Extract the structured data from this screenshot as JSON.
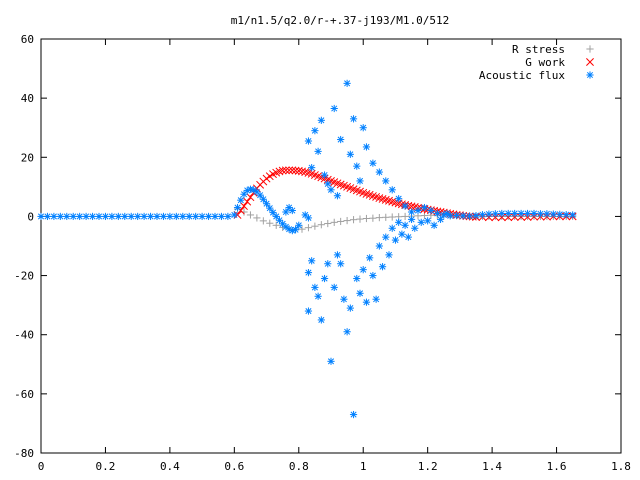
{
  "chart_data": {
    "type": "scatter",
    "title": "m1/n1.5/q2.0/r-+.37-j193/M1.0/512",
    "xlabel": "",
    "ylabel": "",
    "xlim": [
      0,
      1.8
    ],
    "ylim": [
      -80,
      60
    ],
    "xticks": [
      0,
      0.2,
      0.4,
      0.6,
      0.8,
      1,
      1.2,
      1.4,
      1.6,
      1.8
    ],
    "yticks": [
      -80,
      -60,
      -40,
      -20,
      0,
      20,
      40,
      60
    ],
    "xtick_labels": [
      "0",
      "0.2",
      "0.4",
      "0.6",
      "0.8",
      "1",
      "1.2",
      "1.4",
      "1.6",
      "1.8"
    ],
    "ytick_labels": [
      "-80",
      "-60",
      "-40",
      "-20",
      "0",
      "20",
      "40",
      "60"
    ],
    "grid": false,
    "legend_position": "top-right",
    "series": [
      {
        "name": "R stress",
        "marker": "plus",
        "color": "#a0a0a0",
        "points": [
          [
            0.61,
            2.5
          ],
          [
            0.63,
            1.5
          ],
          [
            0.65,
            0.5
          ],
          [
            0.67,
            -0.5
          ],
          [
            0.69,
            -1.5
          ],
          [
            0.71,
            -2.3
          ],
          [
            0.73,
            -3.0
          ],
          [
            0.75,
            -3.7
          ],
          [
            0.77,
            -4.2
          ],
          [
            0.79,
            -4.5
          ],
          [
            0.81,
            -4.3
          ],
          [
            0.83,
            -3.8
          ],
          [
            0.85,
            -3.3
          ],
          [
            0.87,
            -2.8
          ],
          [
            0.89,
            -2.4
          ],
          [
            0.91,
            -2.0
          ],
          [
            0.93,
            -1.7
          ],
          [
            0.95,
            -1.4
          ],
          [
            0.97,
            -1.1
          ],
          [
            0.99,
            -0.9
          ],
          [
            1.01,
            -0.7
          ],
          [
            1.03,
            -0.6
          ],
          [
            1.05,
            -0.4
          ],
          [
            1.07,
            -0.3
          ],
          [
            1.09,
            -0.2
          ],
          [
            1.11,
            -0.1
          ],
          [
            1.13,
            0.0
          ],
          [
            1.15,
            0.1
          ],
          [
            1.17,
            0.2
          ],
          [
            1.19,
            0.3
          ],
          [
            1.21,
            0.4
          ],
          [
            1.23,
            0.4
          ],
          [
            1.25,
            0.5
          ],
          [
            1.27,
            0.4
          ],
          [
            1.29,
            0.3
          ],
          [
            1.31,
            0.2
          ],
          [
            1.33,
            0.1
          ],
          [
            1.35,
            0.1
          ],
          [
            1.37,
            0.0
          ],
          [
            1.39,
            0.0
          ],
          [
            1.41,
            0.0
          ],
          [
            1.43,
            0.0
          ],
          [
            1.45,
            0.0
          ],
          [
            1.47,
            0.0
          ],
          [
            1.49,
            0.0
          ],
          [
            1.51,
            0.0
          ],
          [
            1.53,
            0.0
          ],
          [
            1.55,
            0.0
          ],
          [
            1.57,
            0.0
          ],
          [
            1.59,
            0.0
          ],
          [
            1.61,
            0.0
          ],
          [
            1.63,
            0.0
          ],
          [
            1.65,
            0.0
          ]
        ]
      },
      {
        "name": "G work",
        "marker": "cross",
        "color": "#ff0000",
        "points": [
          [
            0.61,
            0.5
          ],
          [
            0.62,
            2.0
          ],
          [
            0.63,
            3.5
          ],
          [
            0.64,
            5.0
          ],
          [
            0.65,
            6.5
          ],
          [
            0.66,
            8.0
          ],
          [
            0.67,
            9.5
          ],
          [
            0.68,
            10.7
          ],
          [
            0.69,
            11.8
          ],
          [
            0.7,
            12.8
          ],
          [
            0.71,
            13.6
          ],
          [
            0.72,
            14.3
          ],
          [
            0.73,
            14.8
          ],
          [
            0.74,
            15.2
          ],
          [
            0.75,
            15.5
          ],
          [
            0.76,
            15.6
          ],
          [
            0.77,
            15.6
          ],
          [
            0.78,
            15.6
          ],
          [
            0.79,
            15.5
          ],
          [
            0.8,
            15.4
          ],
          [
            0.81,
            15.2
          ],
          [
            0.82,
            15.0
          ],
          [
            0.83,
            14.7
          ],
          [
            0.84,
            14.4
          ],
          [
            0.85,
            14.0
          ],
          [
            0.86,
            13.6
          ],
          [
            0.87,
            13.2
          ],
          [
            0.88,
            12.8
          ],
          [
            0.89,
            12.4
          ],
          [
            0.9,
            12.0
          ],
          [
            0.91,
            11.6
          ],
          [
            0.92,
            11.2
          ],
          [
            0.93,
            10.8
          ],
          [
            0.94,
            10.4
          ],
          [
            0.95,
            10.0
          ],
          [
            0.96,
            9.6
          ],
          [
            0.97,
            9.2
          ],
          [
            0.98,
            8.8
          ],
          [
            0.99,
            8.4
          ],
          [
            1.0,
            8.0
          ],
          [
            1.01,
            7.6
          ],
          [
            1.02,
            7.3
          ],
          [
            1.03,
            6.9
          ],
          [
            1.04,
            6.6
          ],
          [
            1.05,
            6.2
          ],
          [
            1.06,
            5.9
          ],
          [
            1.07,
            5.6
          ],
          [
            1.08,
            5.3
          ],
          [
            1.09,
            5.0
          ],
          [
            1.1,
            4.7
          ],
          [
            1.11,
            4.4
          ],
          [
            1.12,
            4.1
          ],
          [
            1.13,
            3.9
          ],
          [
            1.14,
            3.6
          ],
          [
            1.15,
            3.4
          ],
          [
            1.16,
            3.2
          ],
          [
            1.17,
            2.9
          ],
          [
            1.18,
            2.7
          ],
          [
            1.19,
            2.5
          ],
          [
            1.2,
            2.3
          ],
          [
            1.21,
            2.1
          ],
          [
            1.22,
            1.9
          ],
          [
            1.23,
            1.7
          ],
          [
            1.24,
            1.5
          ],
          [
            1.25,
            1.3
          ],
          [
            1.26,
            1.1
          ],
          [
            1.27,
            0.9
          ],
          [
            1.28,
            0.7
          ],
          [
            1.29,
            0.5
          ],
          [
            1.3,
            0.4
          ],
          [
            1.31,
            0.2
          ],
          [
            1.32,
            0.1
          ],
          [
            1.33,
            0.0
          ],
          [
            1.34,
            -0.1
          ],
          [
            1.35,
            -0.2
          ],
          [
            1.37,
            -0.2
          ],
          [
            1.39,
            -0.3
          ],
          [
            1.41,
            -0.3
          ],
          [
            1.43,
            -0.3
          ],
          [
            1.45,
            -0.3
          ],
          [
            1.47,
            -0.2
          ],
          [
            1.49,
            -0.2
          ],
          [
            1.51,
            -0.2
          ],
          [
            1.53,
            -0.1
          ],
          [
            1.55,
            -0.1
          ],
          [
            1.57,
            -0.1
          ],
          [
            1.59,
            0.0
          ],
          [
            1.61,
            0.0
          ],
          [
            1.63,
            0.0
          ],
          [
            1.65,
            0.0
          ]
        ]
      },
      {
        "name": "Acoustic flux",
        "marker": "star",
        "color": "#0080ff",
        "points": [
          [
            0.0,
            0.0
          ],
          [
            0.02,
            0.0
          ],
          [
            0.04,
            0.0
          ],
          [
            0.06,
            0.0
          ],
          [
            0.08,
            0.0
          ],
          [
            0.1,
            0.0
          ],
          [
            0.12,
            0.0
          ],
          [
            0.14,
            0.0
          ],
          [
            0.16,
            0.0
          ],
          [
            0.18,
            0.0
          ],
          [
            0.2,
            0.0
          ],
          [
            0.22,
            0.0
          ],
          [
            0.24,
            0.0
          ],
          [
            0.26,
            0.0
          ],
          [
            0.28,
            0.0
          ],
          [
            0.3,
            0.0
          ],
          [
            0.32,
            0.0
          ],
          [
            0.34,
            0.0
          ],
          [
            0.36,
            0.0
          ],
          [
            0.38,
            0.0
          ],
          [
            0.4,
            0.0
          ],
          [
            0.42,
            0.0
          ],
          [
            0.44,
            0.0
          ],
          [
            0.46,
            0.0
          ],
          [
            0.48,
            0.0
          ],
          [
            0.5,
            0.0
          ],
          [
            0.52,
            0.0
          ],
          [
            0.54,
            0.0
          ],
          [
            0.56,
            0.0
          ],
          [
            0.58,
            0.0
          ],
          [
            0.6,
            0.5
          ],
          [
            0.61,
            3.0
          ],
          [
            0.62,
            5.5
          ],
          [
            0.63,
            7.5
          ],
          [
            0.64,
            8.8
          ],
          [
            0.65,
            9.2
          ],
          [
            0.66,
            9.0
          ],
          [
            0.67,
            8.3
          ],
          [
            0.68,
            7.2
          ],
          [
            0.69,
            5.8
          ],
          [
            0.7,
            4.3
          ],
          [
            0.71,
            2.8
          ],
          [
            0.72,
            1.3
          ],
          [
            0.73,
            0.0
          ],
          [
            0.74,
            -1.3
          ],
          [
            0.75,
            -2.5
          ],
          [
            0.76,
            -3.5
          ],
          [
            0.77,
            -4.3
          ],
          [
            0.78,
            -4.8
          ],
          [
            0.79,
            -4.5
          ],
          [
            0.8,
            -3.0
          ],
          [
            0.76,
            1.5
          ],
          [
            0.77,
            3.0
          ],
          [
            0.78,
            2.0
          ],
          [
            0.82,
            0.5
          ],
          [
            0.83,
            -0.5
          ],
          [
            0.84,
            16.5
          ],
          [
            0.83,
            25.5
          ],
          [
            0.85,
            29.0
          ],
          [
            0.86,
            22.0
          ],
          [
            0.87,
            32.5
          ],
          [
            0.88,
            14.0
          ],
          [
            0.89,
            11.0
          ],
          [
            0.9,
            9.0
          ],
          [
            0.91,
            36.5
          ],
          [
            0.92,
            7.0
          ],
          [
            0.93,
            26.0
          ],
          [
            0.95,
            45.0
          ],
          [
            0.96,
            21.0
          ],
          [
            0.97,
            33.0
          ],
          [
            0.98,
            17.0
          ],
          [
            0.99,
            12.0
          ],
          [
            1.0,
            30.0
          ],
          [
            1.01,
            23.5
          ],
          [
            1.03,
            18.0
          ],
          [
            1.05,
            15.0
          ],
          [
            1.07,
            12.0
          ],
          [
            1.09,
            9.0
          ],
          [
            1.11,
            6.0
          ],
          [
            1.13,
            3.5
          ],
          [
            1.15,
            1.5
          ],
          [
            0.84,
            -15.0
          ],
          [
            0.83,
            -19.0
          ],
          [
            0.83,
            -32.0
          ],
          [
            0.85,
            -24.0
          ],
          [
            0.86,
            -27.0
          ],
          [
            0.87,
            -35.0
          ],
          [
            0.88,
            -21.0
          ],
          [
            0.89,
            -16.0
          ],
          [
            0.9,
            -49.0
          ],
          [
            0.91,
            -24.0
          ],
          [
            0.92,
            -13.0
          ],
          [
            0.93,
            -16.0
          ],
          [
            0.94,
            -28.0
          ],
          [
            0.95,
            -39.0
          ],
          [
            0.96,
            -31.0
          ],
          [
            0.97,
            -67.0
          ],
          [
            0.98,
            -21.0
          ],
          [
            0.99,
            -26.0
          ],
          [
            1.0,
            -18.0
          ],
          [
            1.01,
            -29.0
          ],
          [
            1.02,
            -14.0
          ],
          [
            1.03,
            -20.0
          ],
          [
            1.04,
            -28.0
          ],
          [
            1.05,
            -10.0
          ],
          [
            1.06,
            -17.0
          ],
          [
            1.07,
            -7.0
          ],
          [
            1.08,
            -13.0
          ],
          [
            1.09,
            -4.0
          ],
          [
            1.1,
            -8.0
          ],
          [
            1.11,
            -2.0
          ],
          [
            1.12,
            -6.0
          ],
          [
            1.13,
            -3.0
          ],
          [
            1.14,
            -7.0
          ],
          [
            1.15,
            -1.0
          ],
          [
            1.16,
            -4.0
          ],
          [
            1.17,
            2.0
          ],
          [
            1.18,
            -2.0
          ],
          [
            1.19,
            3.0
          ],
          [
            1.2,
            -1.5
          ],
          [
            1.21,
            2.0
          ],
          [
            1.22,
            -3.0
          ],
          [
            1.23,
            1.0
          ],
          [
            1.24,
            -1.0
          ],
          [
            1.25,
            0.5
          ],
          [
            1.26,
            1.0
          ],
          [
            1.27,
            0.2
          ],
          [
            1.29,
            0.3
          ],
          [
            1.31,
            0.2
          ],
          [
            1.33,
            0.1
          ],
          [
            1.35,
            0.3
          ],
          [
            1.37,
            0.6
          ],
          [
            1.39,
            0.8
          ],
          [
            1.41,
            0.9
          ],
          [
            1.43,
            1.0
          ],
          [
            1.45,
            1.0
          ],
          [
            1.47,
            1.0
          ],
          [
            1.49,
            1.0
          ],
          [
            1.51,
            1.0
          ],
          [
            1.53,
            1.0
          ],
          [
            1.55,
            0.9
          ],
          [
            1.57,
            0.9
          ],
          [
            1.59,
            0.8
          ],
          [
            1.61,
            0.7
          ],
          [
            1.63,
            0.6
          ],
          [
            1.65,
            0.5
          ]
        ]
      }
    ]
  }
}
